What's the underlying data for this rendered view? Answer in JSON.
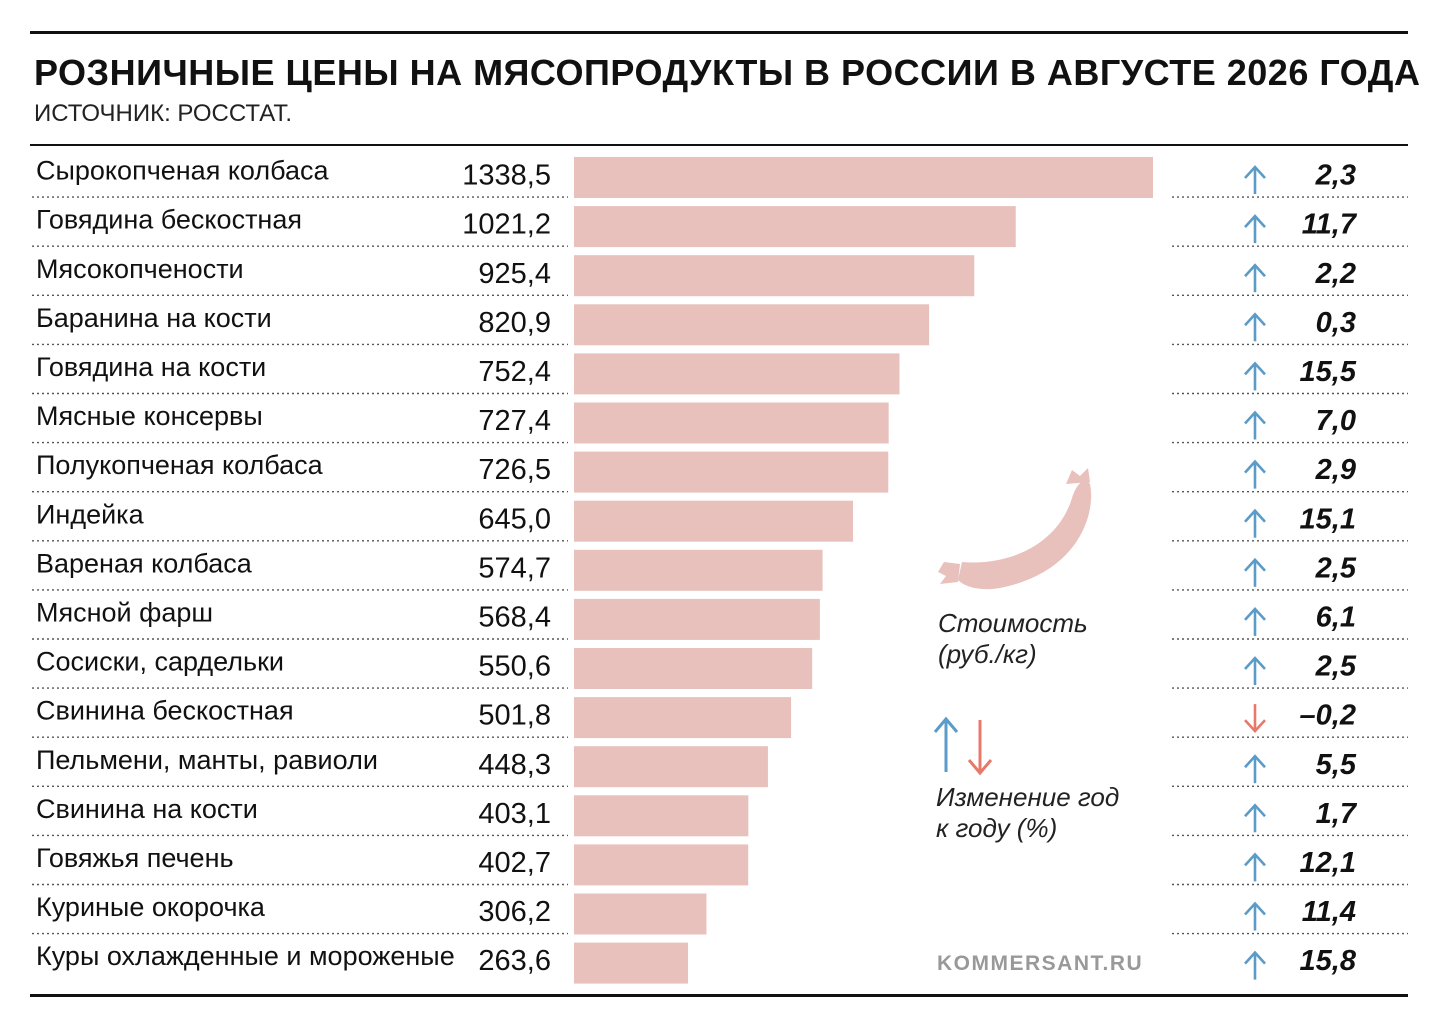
{
  "header": {
    "title": "РОЗНИЧНЫЕ ЦЕНЫ НА МЯСОПРОДУКТЫ В РОССИИ В АВГУСТЕ 2026 ГОДА",
    "subtitle": "ИСТОЧНИК: РОССТАТ."
  },
  "legend": {
    "price_label": "Стоимость (руб./кг)",
    "change_label": "Изменение год к году (%)",
    "icon": "sausage-icon"
  },
  "source": "KOMMERSANT.RU",
  "colors": {
    "bar": "#e8c0bc",
    "up": "#5b9bc8",
    "down": "#e8796a",
    "dotted": "#555555"
  },
  "chart_data": {
    "type": "bar",
    "orientation": "horizontal",
    "title": "РОЗНИЧНЫЕ ЦЕНЫ НА МЯСОПРОДУКТЫ В РОССИИ В АВГУСТЕ 2026 ГОДА",
    "xlim": [
      0,
      1338.5
    ],
    "categories": [
      "Сырокопченая колбаса",
      "Говядина бескостная",
      "Мясокопчености",
      "Баранина на кости",
      "Говядина на кости",
      "Мясные консервы",
      "Полукопченая колбаса",
      "Индейка",
      "Вареная колбаса",
      "Мясной фарш",
      "Сосиски, сардельки",
      "Свинина бескостная",
      "Пельмени, манты, равиоли",
      "Свинина на кости",
      "Говяжья печень",
      "Куриные окорочка",
      "Куры охлажденные и мороженые"
    ],
    "series": [
      {
        "name": "Стоимость (руб./кг)",
        "values": [
          1338.5,
          1021.2,
          925.4,
          820.9,
          752.4,
          727.4,
          726.5,
          645.0,
          574.7,
          568.4,
          550.6,
          501.8,
          448.3,
          403.1,
          402.7,
          306.2,
          263.6
        ],
        "labels": [
          "1338,5",
          "1021,2",
          "925,4",
          "820,9",
          "752,4",
          "727,4",
          "726,5",
          "645,0",
          "574,7",
          "568,4",
          "550,6",
          "501,8",
          "448,3",
          "403,1",
          "402,7",
          "306,2",
          "263,6"
        ]
      },
      {
        "name": "Изменение год к году (%)",
        "values": [
          2.3,
          11.7,
          2.2,
          0.3,
          15.5,
          7.0,
          2.9,
          15.1,
          2.5,
          6.1,
          2.5,
          -0.2,
          5.5,
          1.7,
          12.1,
          11.4,
          15.8
        ],
        "labels": [
          "2,3",
          "11,7",
          "2,2",
          "0,3",
          "15,5",
          "7,0",
          "2,9",
          "15,1",
          "2,5",
          "6,1",
          "2,5",
          "–0,2",
          "5,5",
          "1,7",
          "12,1",
          "11,4",
          "15,8"
        ]
      }
    ]
  }
}
